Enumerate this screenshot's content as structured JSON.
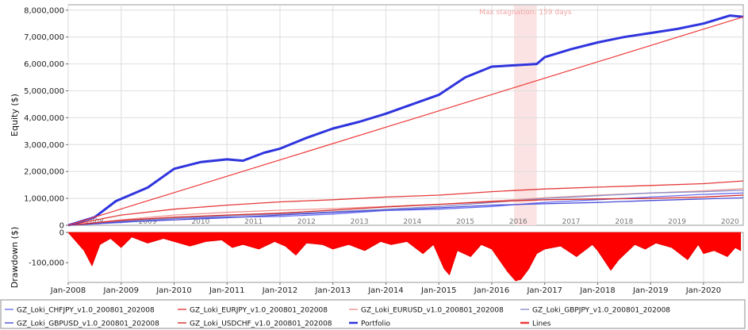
{
  "chart_data": {
    "type": "line",
    "equity_panel": {
      "ylabel": "Equity ($)",
      "ylim": [
        0,
        8200000
      ],
      "y_ticks": [
        0,
        1000000,
        2000000,
        3000000,
        4000000,
        5000000,
        6000000,
        7000000,
        8000000
      ],
      "y_tick_labels": [
        "0",
        "1,000,000",
        "2,000,000",
        "3,000,000",
        "4,000,000",
        "5,000,000",
        "6,000,000",
        "7,000,000",
        "8,000,000"
      ],
      "inner_year_labels": [
        "2008",
        "2009",
        "2010",
        "2011",
        "2012",
        "2013",
        "2014",
        "2015",
        "2016",
        "2017",
        "2018",
        "2019",
        "2020"
      ],
      "annotation": "Max stagnation: 159 days",
      "stagnation_period": {
        "start": 2016.42,
        "end": 2016.85
      },
      "grid": true
    },
    "drawdown_panel": {
      "ylabel": "Drawdown ($)",
      "ylim": [
        -165000,
        0
      ],
      "y_ticks": [
        0,
        -100000
      ],
      "y_tick_labels": [
        "0",
        "-100,000"
      ],
      "drawdown_points": [
        [
          2008.0,
          0
        ],
        [
          2008.3,
          -60000
        ],
        [
          2008.45,
          -110000
        ],
        [
          2008.6,
          -40000
        ],
        [
          2008.8,
          -20000
        ],
        [
          2009.0,
          -50000
        ],
        [
          2009.2,
          -15000
        ],
        [
          2009.5,
          -35000
        ],
        [
          2009.8,
          -20000
        ],
        [
          2010.0,
          -30000
        ],
        [
          2010.3,
          -45000
        ],
        [
          2010.6,
          -30000
        ],
        [
          2010.9,
          -25000
        ],
        [
          2011.1,
          -50000
        ],
        [
          2011.3,
          -40000
        ],
        [
          2011.6,
          -55000
        ],
        [
          2011.9,
          -30000
        ],
        [
          2012.1,
          -45000
        ],
        [
          2012.3,
          -75000
        ],
        [
          2012.5,
          -35000
        ],
        [
          2012.8,
          -40000
        ],
        [
          2013.0,
          -55000
        ],
        [
          2013.3,
          -40000
        ],
        [
          2013.6,
          -60000
        ],
        [
          2013.9,
          -30000
        ],
        [
          2014.1,
          -40000
        ],
        [
          2014.4,
          -30000
        ],
        [
          2014.7,
          -70000
        ],
        [
          2014.9,
          -40000
        ],
        [
          2015.1,
          -120000
        ],
        [
          2015.2,
          -140000
        ],
        [
          2015.35,
          -60000
        ],
        [
          2015.6,
          -80000
        ],
        [
          2015.8,
          -40000
        ],
        [
          2016.0,
          -55000
        ],
        [
          2016.3,
          -130000
        ],
        [
          2016.45,
          -160000
        ],
        [
          2016.55,
          -155000
        ],
        [
          2016.7,
          -120000
        ],
        [
          2016.85,
          -70000
        ],
        [
          2017.0,
          -55000
        ],
        [
          2017.3,
          -45000
        ],
        [
          2017.6,
          -80000
        ],
        [
          2017.9,
          -40000
        ],
        [
          2018.0,
          -60000
        ],
        [
          2018.25,
          -125000
        ],
        [
          2018.4,
          -90000
        ],
        [
          2018.7,
          -40000
        ],
        [
          2018.9,
          -55000
        ],
        [
          2019.1,
          -35000
        ],
        [
          2019.4,
          -50000
        ],
        [
          2019.7,
          -90000
        ],
        [
          2019.9,
          -40000
        ],
        [
          2020.0,
          -70000
        ],
        [
          2020.2,
          -60000
        ],
        [
          2020.45,
          -80000
        ],
        [
          2020.6,
          -50000
        ],
        [
          2020.7,
          -60000
        ]
      ]
    },
    "x_axis": {
      "xlim": [
        2008.0,
        2020.75
      ],
      "tick_values": [
        2008,
        2009,
        2010,
        2011,
        2012,
        2013,
        2014,
        2015,
        2016,
        2017,
        2018,
        2019,
        2020
      ],
      "tick_labels": [
        "Jan-2008",
        "Jan-2009",
        "Jan-2010",
        "Jan-2011",
        "Jan-2012",
        "Jan-2013",
        "Jan-2014",
        "Jan-2015",
        "Jan-2016",
        "Jan-2017",
        "Jan-2018",
        "Jan-2019",
        "Jan-2020"
      ]
    },
    "series": [
      {
        "name": "GZ_Loki_CHFJPY_v1.0_200801_202008",
        "color": "#6b6ff0",
        "points": [
          [
            2008.0,
            0
          ],
          [
            2009.0,
            100000
          ],
          [
            2010.0,
            250000
          ],
          [
            2011.0,
            300000
          ],
          [
            2012.0,
            330000
          ],
          [
            2013.0,
            420000
          ],
          [
            2014.0,
            550000
          ],
          [
            2015.0,
            600000
          ],
          [
            2016.0,
            700000
          ],
          [
            2017.0,
            850000
          ],
          [
            2018.0,
            950000
          ],
          [
            2019.0,
            1050000
          ],
          [
            2020.0,
            1150000
          ],
          [
            2020.75,
            1200000
          ]
        ]
      },
      {
        "name": "GZ_Loki_EURJPY_v1.0_200801_202008",
        "color": "#e53a3a",
        "points": [
          [
            2008.0,
            0
          ],
          [
            2009.0,
            380000
          ],
          [
            2010.0,
            600000
          ],
          [
            2011.0,
            750000
          ],
          [
            2012.0,
            870000
          ],
          [
            2013.0,
            950000
          ],
          [
            2014.0,
            1050000
          ],
          [
            2015.0,
            1120000
          ],
          [
            2016.0,
            1250000
          ],
          [
            2017.0,
            1350000
          ],
          [
            2018.0,
            1420000
          ],
          [
            2019.0,
            1480000
          ],
          [
            2020.0,
            1550000
          ],
          [
            2020.75,
            1650000
          ]
        ]
      },
      {
        "name": "GZ_Loki_EURUSD_v1.0_200801_202008",
        "color": "#f0928f",
        "points": [
          [
            2008.0,
            0
          ],
          [
            2009.0,
            200000
          ],
          [
            2010.0,
            380000
          ],
          [
            2011.0,
            480000
          ],
          [
            2012.0,
            560000
          ],
          [
            2013.0,
            620000
          ],
          [
            2014.0,
            700000
          ],
          [
            2015.0,
            780000
          ],
          [
            2016.0,
            900000
          ],
          [
            2017.0,
            1020000
          ],
          [
            2018.0,
            1120000
          ],
          [
            2019.0,
            1200000
          ],
          [
            2020.0,
            1280000
          ],
          [
            2020.75,
            1360000
          ]
        ]
      },
      {
        "name": "GZ_Loki_GBPJPY_v1.0_200801_202008",
        "color": "#8a90c8",
        "points": [
          [
            2008.0,
            0
          ],
          [
            2009.0,
            150000
          ],
          [
            2010.0,
            260000
          ],
          [
            2011.0,
            350000
          ],
          [
            2012.0,
            420000
          ],
          [
            2013.0,
            500000
          ],
          [
            2014.0,
            600000
          ],
          [
            2015.0,
            700000
          ],
          [
            2016.0,
            850000
          ],
          [
            2017.0,
            1000000
          ],
          [
            2018.0,
            1100000
          ],
          [
            2019.0,
            1200000
          ],
          [
            2020.0,
            1250000
          ],
          [
            2020.75,
            1300000
          ]
        ]
      },
      {
        "name": "GZ_Loki_GBPUSD_v1.0_200801_202008",
        "color": "#4a4ed8",
        "points": [
          [
            2008.0,
            0
          ],
          [
            2009.0,
            120000
          ],
          [
            2010.0,
            200000
          ],
          [
            2011.0,
            280000
          ],
          [
            2012.0,
            380000
          ],
          [
            2013.0,
            480000
          ],
          [
            2014.0,
            560000
          ],
          [
            2015.0,
            650000
          ],
          [
            2016.0,
            750000
          ],
          [
            2017.0,
            800000
          ],
          [
            2018.0,
            850000
          ],
          [
            2019.0,
            920000
          ],
          [
            2020.0,
            980000
          ],
          [
            2020.75,
            1020000
          ]
        ]
      },
      {
        "name": "GZ_Loki_USDCHF_v1.0_200801_202008",
        "color": "#d62a2a",
        "points": [
          [
            2008.0,
            0
          ],
          [
            2009.0,
            180000
          ],
          [
            2010.0,
            300000
          ],
          [
            2011.0,
            380000
          ],
          [
            2012.0,
            450000
          ],
          [
            2013.0,
            560000
          ],
          [
            2014.0,
            680000
          ],
          [
            2015.0,
            780000
          ],
          [
            2016.0,
            880000
          ],
          [
            2017.0,
            950000
          ],
          [
            2018.0,
            980000
          ],
          [
            2019.0,
            1000000
          ],
          [
            2020.0,
            1050000
          ],
          [
            2020.75,
            1120000
          ]
        ]
      },
      {
        "name": "Portfolio",
        "color": "#2f34dd",
        "width": 3,
        "points": [
          [
            2008.0,
            0
          ],
          [
            2008.5,
            300000
          ],
          [
            2008.9,
            900000
          ],
          [
            2009.5,
            1400000
          ],
          [
            2010.0,
            2100000
          ],
          [
            2010.5,
            2350000
          ],
          [
            2011.0,
            2450000
          ],
          [
            2011.3,
            2400000
          ],
          [
            2011.7,
            2700000
          ],
          [
            2012.0,
            2850000
          ],
          [
            2012.5,
            3250000
          ],
          [
            2013.0,
            3600000
          ],
          [
            2013.5,
            3850000
          ],
          [
            2014.0,
            4150000
          ],
          [
            2014.5,
            4500000
          ],
          [
            2015.0,
            4850000
          ],
          [
            2015.5,
            5500000
          ],
          [
            2016.0,
            5900000
          ],
          [
            2016.45,
            5950000
          ],
          [
            2016.85,
            6000000
          ],
          [
            2017.0,
            6250000
          ],
          [
            2017.5,
            6550000
          ],
          [
            2018.0,
            6800000
          ],
          [
            2018.5,
            7000000
          ],
          [
            2019.0,
            7150000
          ],
          [
            2019.5,
            7300000
          ],
          [
            2020.0,
            7500000
          ],
          [
            2020.5,
            7800000
          ],
          [
            2020.75,
            7750000
          ]
        ]
      },
      {
        "name": "Lines",
        "color": "#ee3b3b",
        "width": 1.2,
        "points": [
          [
            2008.0,
            0
          ],
          [
            2020.75,
            7750000
          ]
        ]
      }
    ],
    "legend_placement": "bottom"
  }
}
